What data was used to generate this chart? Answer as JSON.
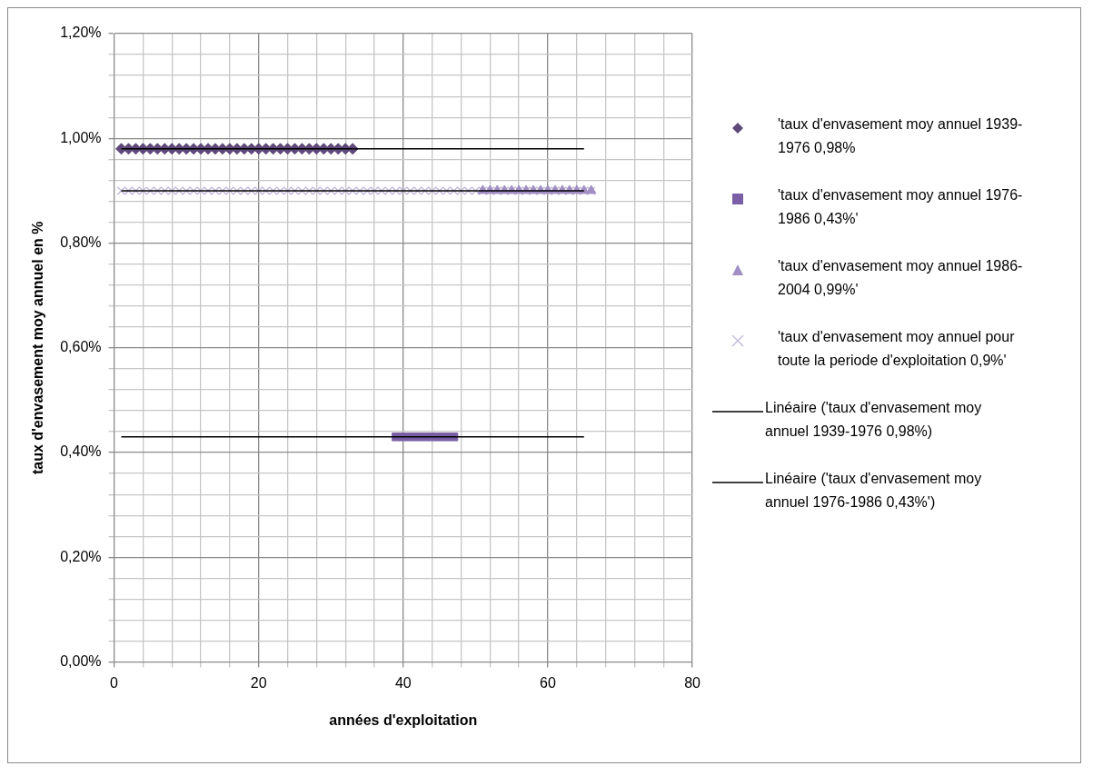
{
  "chart_data": {
    "type": "scatter",
    "xlabel": "années d'exploitation",
    "ylabel": "taux d'envasement moy annuel en %",
    "xlim": [
      0,
      80
    ],
    "ylim": [
      0,
      1.2
    ],
    "xticks": [
      0,
      {
        "value": 4,
        "label": null
      },
      {
        "value": 8,
        "label": null
      },
      {
        "value": 12,
        "label": null
      },
      {
        "value": 16,
        "label": null
      },
      20,
      {
        "value": 24,
        "label": null
      },
      {
        "value": 28,
        "label": null
      },
      {
        "value": 32,
        "label": null
      },
      {
        "value": 36,
        "label": null
      },
      40,
      {
        "value": 44,
        "label": null
      },
      {
        "value": 48,
        "label": null
      },
      {
        "value": 52,
        "label": null
      },
      {
        "value": 56,
        "label": null
      },
      60,
      {
        "value": 64,
        "label": null
      },
      {
        "value": 68,
        "label": null
      },
      {
        "value": 72,
        "label": null
      },
      {
        "value": 76,
        "label": null
      },
      80
    ],
    "yticks": [
      {
        "value": 0,
        "label": "0,00%"
      },
      {
        "value": 0.04,
        "label": null
      },
      {
        "value": 0.08,
        "label": null
      },
      {
        "value": 0.12,
        "label": null
      },
      {
        "value": 0.16,
        "label": null
      },
      {
        "value": 0.2,
        "label": "0,20%"
      },
      {
        "value": 0.24,
        "label": null
      },
      {
        "value": 0.28,
        "label": null
      },
      {
        "value": 0.32,
        "label": null
      },
      {
        "value": 0.36,
        "label": null
      },
      {
        "value": 0.4,
        "label": "0,40%"
      },
      {
        "value": 0.44,
        "label": null
      },
      {
        "value": 0.48,
        "label": null
      },
      {
        "value": 0.52,
        "label": null
      },
      {
        "value": 0.56,
        "label": null
      },
      {
        "value": 0.6,
        "label": "0,60%"
      },
      {
        "value": 0.64,
        "label": null
      },
      {
        "value": 0.68,
        "label": null
      },
      {
        "value": 0.72,
        "label": null
      },
      {
        "value": 0.76,
        "label": null
      },
      {
        "value": 0.8,
        "label": "0,80%"
      },
      {
        "value": 0.84,
        "label": null
      },
      {
        "value": 0.88,
        "label": null
      },
      {
        "value": 0.92,
        "label": null
      },
      {
        "value": 0.96,
        "label": null
      },
      {
        "value": 1,
        "label": "1,00%"
      },
      {
        "value": 1.04,
        "label": null
      },
      {
        "value": 1.08,
        "label": null
      },
      {
        "value": 1.12,
        "label": null
      },
      {
        "value": 1.16,
        "label": null
      },
      {
        "value": 1.2,
        "label": "1,20%"
      }
    ],
    "grid": true,
    "legend": "right",
    "series": [
      {
        "name": "'taux d'envasement moy annuel 1939-1976 0,98%",
        "color": "#5f497a",
        "marker": "diamond",
        "x": [
          1,
          2,
          3,
          4,
          5,
          6,
          7,
          8,
          9,
          10,
          11,
          12,
          13,
          14,
          15,
          16,
          17,
          18,
          19,
          20,
          21,
          22,
          23,
          24,
          25,
          26,
          27,
          28,
          29,
          30,
          31,
          32,
          33
        ],
        "values": [
          0.98,
          0.98,
          0.98,
          0.98,
          0.98,
          0.98,
          0.98,
          0.98,
          0.98,
          0.98,
          0.98,
          0.98,
          0.98,
          0.98,
          0.98,
          0.98,
          0.98,
          0.98,
          0.98,
          0.98,
          0.98,
          0.98,
          0.98,
          0.98,
          0.98,
          0.98,
          0.98,
          0.98,
          0.98,
          0.98,
          0.98,
          0.98,
          0.98
        ]
      },
      {
        "name": "'taux d'envasement moy annuel 1976-1986 0,43%'",
        "color": "#7b5fa6",
        "marker": "square",
        "x": [
          39,
          40,
          41,
          42,
          43,
          44,
          45,
          46,
          47
        ],
        "values": [
          0.43,
          0.43,
          0.43,
          0.43,
          0.43,
          0.43,
          0.43,
          0.43,
          0.43
        ]
      },
      {
        "name": "'taux d'envasement moy annuel 1986-2004 0,99%'",
        "color": "#a08ec4",
        "marker": "triangle",
        "x": [
          51,
          52,
          53,
          54,
          55,
          56,
          57,
          58,
          59,
          60,
          61,
          62,
          63,
          64,
          65,
          66
        ],
        "values": [
          0.9,
          0.9,
          0.9,
          0.9,
          0.9,
          0.9,
          0.9,
          0.9,
          0.9,
          0.9,
          0.9,
          0.9,
          0.9,
          0.9,
          0.9,
          0.9
        ]
      },
      {
        "name": "'taux d'envasement moy annuel pour toute la periode d'exploitation 0,9%'",
        "color": "#c8bedc",
        "marker": "cross",
        "x": [
          1,
          2,
          3,
          4,
          5,
          6,
          7,
          8,
          9,
          10,
          11,
          12,
          13,
          14,
          15,
          16,
          17,
          18,
          19,
          20,
          21,
          22,
          23,
          24,
          25,
          26,
          27,
          28,
          29,
          30,
          31,
          32,
          33,
          34,
          35,
          36,
          37,
          38,
          39,
          40,
          41,
          42,
          43,
          44,
          45,
          46,
          47,
          48,
          49,
          50,
          51,
          52,
          53,
          54,
          55,
          56,
          57,
          58,
          59,
          60,
          61,
          62,
          63,
          64,
          65,
          66
        ],
        "values": [
          0.9,
          0.9,
          0.9,
          0.9,
          0.9,
          0.9,
          0.9,
          0.9,
          0.9,
          0.9,
          0.9,
          0.9,
          0.9,
          0.9,
          0.9,
          0.9,
          0.9,
          0.9,
          0.9,
          0.9,
          0.9,
          0.9,
          0.9,
          0.9,
          0.9,
          0.9,
          0.9,
          0.9,
          0.9,
          0.9,
          0.9,
          0.9,
          0.9,
          0.9,
          0.9,
          0.9,
          0.9,
          0.9,
          0.9,
          0.9,
          0.9,
          0.9,
          0.9,
          0.9,
          0.9,
          0.9,
          0.9,
          0.9,
          0.9,
          0.9,
          0.9,
          0.9,
          0.9,
          0.9,
          0.9,
          0.9,
          0.9,
          0.9,
          0.9,
          0.9,
          0.9,
          0.9,
          0.9,
          0.9,
          0.9,
          0.9
        ]
      },
      {
        "name": "Linéaire ('taux d'envasement moy annuel 1939-1976 0,98%)",
        "type": "line",
        "color": "#000000",
        "marker": "none",
        "x": [
          1,
          65
        ],
        "values": [
          0.98,
          0.98
        ]
      },
      {
        "name": "Linéaire ('taux d'envasement moy annuel 1976-1986 0,43%')",
        "type": "line",
        "color": "#000000",
        "marker": "none",
        "x": [
          1,
          65
        ],
        "values": [
          0.43,
          0.43
        ]
      },
      {
        "type": "line",
        "color": "#000000",
        "marker": "none",
        "x": [
          1,
          65
        ],
        "values": [
          0.9,
          0.9
        ]
      }
    ]
  }
}
